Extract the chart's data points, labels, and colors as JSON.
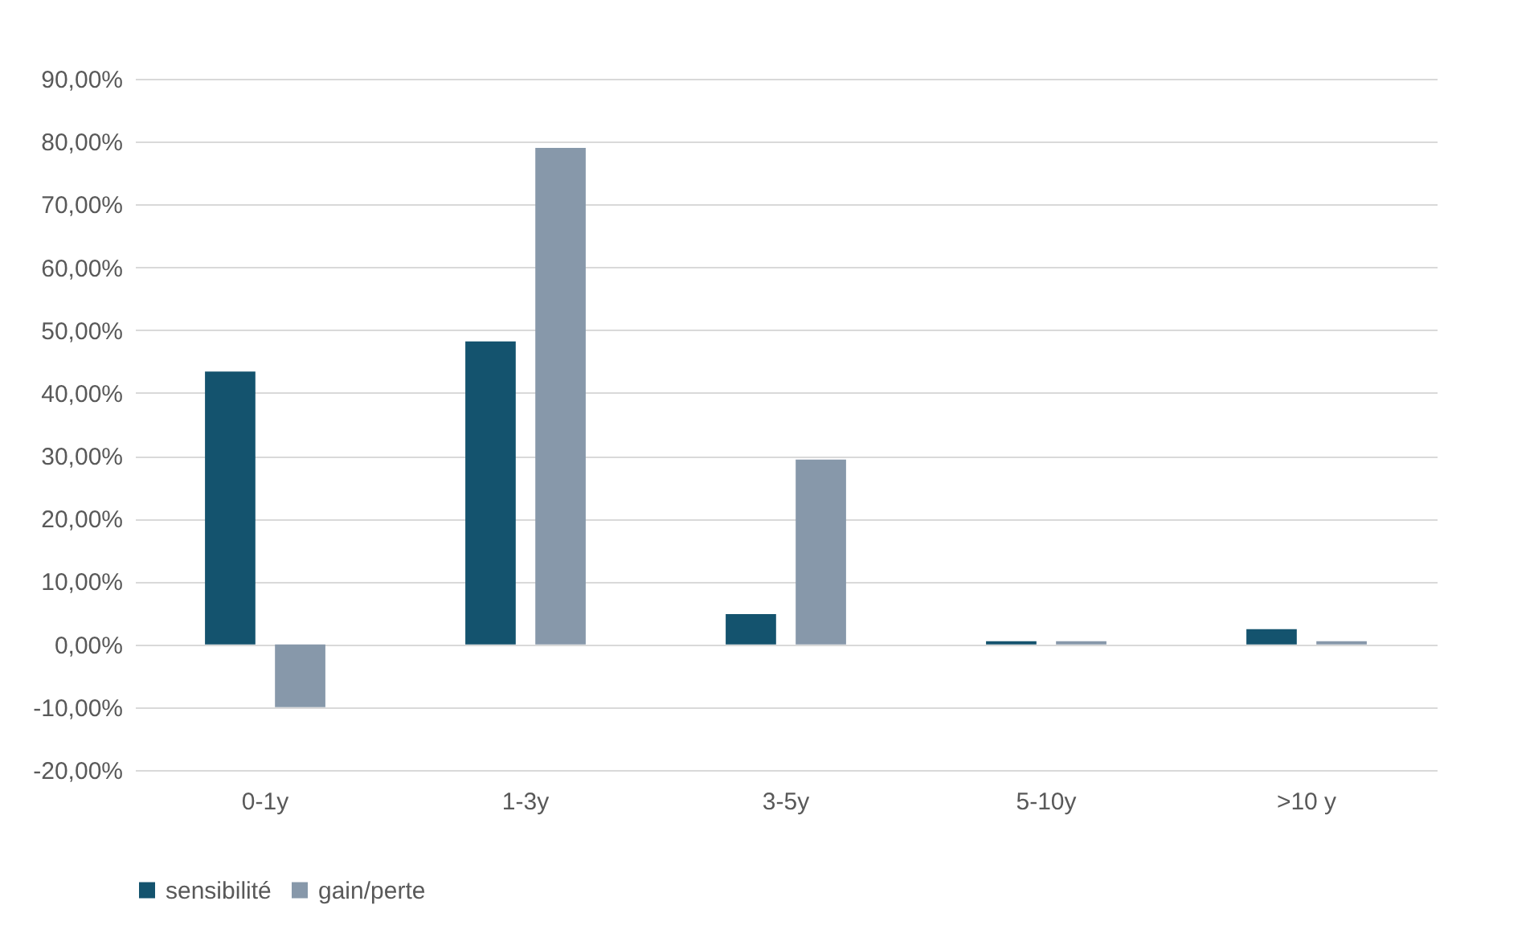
{
  "chart_data": {
    "type": "bar",
    "categories": [
      "0-1y",
      "1-3y",
      "3-5y",
      "5-10y",
      ">10 y"
    ],
    "series": [
      {
        "name": "sensibilité",
        "color": "#14536e",
        "values": [
          43.4,
          48.2,
          4.8,
          0.5,
          2.4
        ]
      },
      {
        "name": "gain/perte",
        "color": "#8798aa",
        "values": [
          -10,
          79,
          29.4,
          0.5,
          0.5
        ]
      }
    ],
    "ylim": [
      -20,
      90
    ],
    "yticks": [
      {
        "value": -20,
        "label": "-20,00%"
      },
      {
        "value": -10,
        "label": "-10,00%"
      },
      {
        "value": 0,
        "label": "0,00%"
      },
      {
        "value": 10,
        "label": "10,00%"
      },
      {
        "value": 20,
        "label": "20,00%"
      },
      {
        "value": 30,
        "label": "30,00%"
      },
      {
        "value": 40,
        "label": "40,00%"
      },
      {
        "value": 50,
        "label": "50,00%"
      },
      {
        "value": 60,
        "label": "60,00%"
      },
      {
        "value": 70,
        "label": "70,00%"
      },
      {
        "value": 80,
        "label": "80,00%"
      },
      {
        "value": 90,
        "label": "90,00%"
      }
    ],
    "grid": "y",
    "legend": "bottom"
  }
}
